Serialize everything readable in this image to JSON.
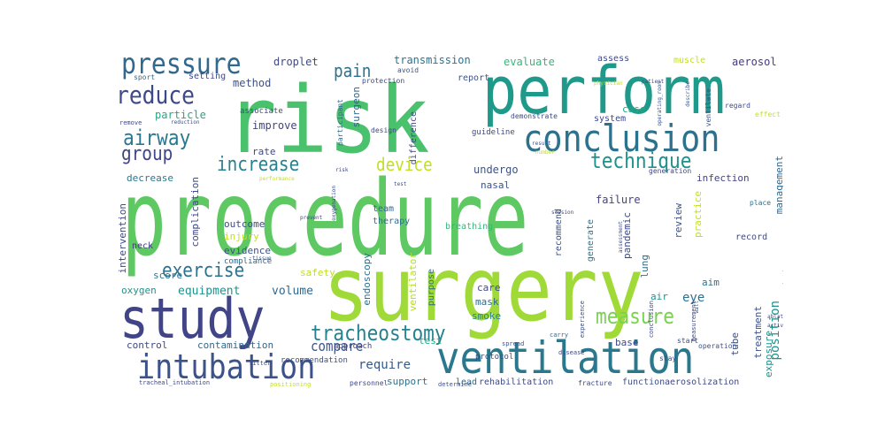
{
  "words": [
    {
      "text": "procedure",
      "color": "#5ec962"
    },
    {
      "text": "surgery",
      "color": "#a0da39"
    },
    {
      "text": "risk",
      "color": "#4ac16d"
    },
    {
      "text": "perform",
      "color": "#1f9a8a"
    },
    {
      "text": "study",
      "color": "#414487"
    },
    {
      "text": "ventilation",
      "color": "#2a788e"
    },
    {
      "text": "conclusion",
      "color": "#2c728e"
    },
    {
      "text": "intubation",
      "color": "#3b528b"
    },
    {
      "text": "pressure",
      "color": "#31688e"
    },
    {
      "text": "tracheostomy",
      "color": "#26828e"
    },
    {
      "text": "airway",
      "color": "#2a788e"
    },
    {
      "text": "reduce",
      "color": "#3e4989"
    },
    {
      "text": "exercise",
      "color": "#2c728e"
    },
    {
      "text": "increase",
      "color": "#26828e"
    },
    {
      "text": "technique",
      "color": "#21918c"
    },
    {
      "text": "device",
      "color": "#c2df23"
    },
    {
      "text": "group",
      "color": "#414487"
    },
    {
      "text": "measure",
      "color": "#7ad151"
    },
    {
      "text": "pain",
      "color": "#2c728e"
    },
    {
      "text": "compare",
      "color": "#3b528b"
    },
    {
      "text": "require",
      "color": "#38588c"
    },
    {
      "text": "equipment",
      "color": "#21918c"
    },
    {
      "text": "volume",
      "color": "#31688e"
    },
    {
      "text": "transmission",
      "color": "#2c728e"
    },
    {
      "text": "droplet",
      "color": "#3e4989"
    },
    {
      "text": "evaluate",
      "color": "#35b779"
    },
    {
      "text": "aerosol",
      "color": "#443983"
    },
    {
      "text": "method",
      "color": "#3b528b"
    },
    {
      "text": "improve",
      "color": "#414487"
    },
    {
      "text": "position",
      "color": "#21918c"
    },
    {
      "text": "eye",
      "color": "#2c728e"
    },
    {
      "text": "undergo",
      "color": "#3b528b"
    },
    {
      "text": "failure",
      "color": "#414487"
    },
    {
      "text": "particle",
      "color": "#22a884"
    },
    {
      "text": "safety",
      "color": "#bddf26"
    },
    {
      "text": "contamination",
      "color": "#31688e"
    },
    {
      "text": "control",
      "color": "#3e4989"
    },
    {
      "text": "mask",
      "color": "#31688e"
    },
    {
      "text": "care",
      "color": "#3e4989"
    },
    {
      "text": "aim",
      "color": "#2c728e"
    },
    {
      "text": "oxygen",
      "color": "#21918c"
    },
    {
      "text": "evidence",
      "color": "#3b528b"
    },
    {
      "text": "outcome",
      "color": "#3e4989"
    },
    {
      "text": "complication",
      "color": "#3e4989"
    },
    {
      "text": "decrease",
      "color": "#2a788e"
    },
    {
      "text": "infection",
      "color": "#414487"
    },
    {
      "text": "pandemic",
      "color": "#3e4989"
    },
    {
      "text": "lung",
      "color": "#2c728e"
    },
    {
      "text": "review",
      "color": "#3b528b"
    },
    {
      "text": "practice",
      "color": "#c2df23"
    },
    {
      "text": "score",
      "color": "#2a788e"
    },
    {
      "text": "smoke",
      "color": "#26828e"
    },
    {
      "text": "support",
      "color": "#2c728e"
    },
    {
      "text": "test",
      "color": "#22a884"
    },
    {
      "text": "base",
      "color": "#3e4989"
    },
    {
      "text": "nasal",
      "color": "#3b528b"
    },
    {
      "text": "endoscopy",
      "color": "#2c728e"
    },
    {
      "text": "ventilator",
      "color": "#b5de2b"
    },
    {
      "text": "intervention",
      "color": "#3e4989"
    },
    {
      "text": "injury",
      "color": "#c2df23"
    },
    {
      "text": "management",
      "color": "#31688e"
    },
    {
      "text": "treatment",
      "color": "#3b528b"
    },
    {
      "text": "exposure",
      "color": "#21918c"
    },
    {
      "text": "case",
      "color": "#22a884"
    },
    {
      "text": "system",
      "color": "#3e4989"
    },
    {
      "text": "difference",
      "color": "#3e4989"
    },
    {
      "text": "surgeon",
      "color": "#31688e"
    },
    {
      "text": "rate",
      "color": "#3e4989"
    },
    {
      "text": "generate",
      "color": "#2c728e"
    },
    {
      "text": "recommend",
      "color": "#3b528b"
    },
    {
      "text": "purpose",
      "color": "#2c728e"
    },
    {
      "text": "report",
      "color": "#3b528b"
    },
    {
      "text": "assess",
      "color": "#3e4989"
    },
    {
      "text": "muscle",
      "color": "#c2df23"
    },
    {
      "text": "setting",
      "color": "#3e4989"
    },
    {
      "text": "sport",
      "color": "#31688e"
    },
    {
      "text": "tube",
      "color": "#3b528b"
    },
    {
      "text": "air",
      "color": "#21918c"
    },
    {
      "text": "compliance",
      "color": "#31688e"
    },
    {
      "text": "neck",
      "color": "#443983"
    },
    {
      "text": "record",
      "color": "#3e4989"
    },
    {
      "text": "team",
      "color": "#31688e"
    },
    {
      "text": "therapy",
      "color": "#2c728e"
    },
    {
      "text": "breathing",
      "color": "#35b779"
    },
    {
      "text": "protocol",
      "color": "#3e4989"
    },
    {
      "text": "approach",
      "color": "#414487"
    },
    {
      "text": "recommendation",
      "color": "#3b528b"
    },
    {
      "text": "rehabilitation",
      "color": "#3e4989"
    },
    {
      "text": "lead",
      "color": "#31688e"
    },
    {
      "text": "function",
      "color": "#3b528b"
    },
    {
      "text": "aerosolization",
      "color": "#3e4989"
    },
    {
      "text": "guideline",
      "color": "#3e4989"
    },
    {
      "text": "design",
      "color": "#414487"
    },
    {
      "text": "associate",
      "color": "#3e4989"
    },
    {
      "text": "participant",
      "color": "#31688e"
    },
    {
      "text": "avoid",
      "color": "#3b528b"
    },
    {
      "text": "protection",
      "color": "#3e4989"
    },
    {
      "text": "demonstrate",
      "color": "#3e4989"
    },
    {
      "text": "ventilate",
      "color": "#3b528b"
    },
    {
      "text": "generation",
      "color": "#3e4989"
    },
    {
      "text": "regard",
      "color": "#3e4989"
    },
    {
      "text": "place",
      "color": "#2c728e"
    },
    {
      "text": "effect",
      "color": "#c2df23"
    },
    {
      "text": "stay",
      "color": "#3e4989"
    },
    {
      "text": "operation",
      "color": "#3b528b"
    },
    {
      "text": "fracture",
      "color": "#3e4989"
    },
    {
      "text": "personnel",
      "color": "#3e4989"
    },
    {
      "text": "determine",
      "color": "#3b528b"
    },
    {
      "text": "positioning",
      "color": "#c2df23"
    },
    {
      "text": "tracheal_intubation",
      "color": "#3e4989"
    },
    {
      "text": "filter",
      "color": "#3b528b"
    },
    {
      "text": "start",
      "color": "#3e4989"
    },
    {
      "text": "carry",
      "color": "#31688e"
    },
    {
      "text": "disease",
      "color": "#3e4989"
    },
    {
      "text": "spread",
      "color": "#3b528b"
    },
    {
      "text": "conclusion",
      "color": "#3e4989"
    },
    {
      "text": "experience",
      "color": "#3b528b"
    },
    {
      "text": "measurement",
      "color": "#3e4989"
    },
    {
      "text": "extubation",
      "color": "#3b528b"
    },
    {
      "text": "remove",
      "color": "#3e4989"
    },
    {
      "text": "reduction",
      "color": "#3b528b"
    },
    {
      "text": "prevent",
      "color": "#3e4989"
    },
    {
      "text": "tissue",
      "color": "#3b528b"
    },
    {
      "text": "oxygenation",
      "color": "#3e4989"
    },
    {
      "text": "performance",
      "color": "#c2df23"
    },
    {
      "text": "test",
      "color": "#3b528b"
    },
    {
      "text": "session",
      "color": "#3e4989"
    },
    {
      "text": "result",
      "color": "#3b528b"
    },
    {
      "text": "number",
      "color": "#c2df23"
    },
    {
      "text": "risk",
      "color": "#3e4989"
    },
    {
      "text": "operating_room",
      "color": "#3b528b"
    },
    {
      "text": "physician",
      "color": "#c2df23"
    },
    {
      "text": "assessment",
      "color": "#3e4989"
    },
    {
      "text": "describe",
      "color": "#3b528b"
    },
    {
      "text": "patient",
      "color": "#3e4989"
    },
    {
      "text": "ablate",
      "color": "#3b528b"
    },
    {
      "text": "activity",
      "color": "#3e4989"
    },
    {
      "text": "wall",
      "color": "#3b528b"
    }
  ]
}
